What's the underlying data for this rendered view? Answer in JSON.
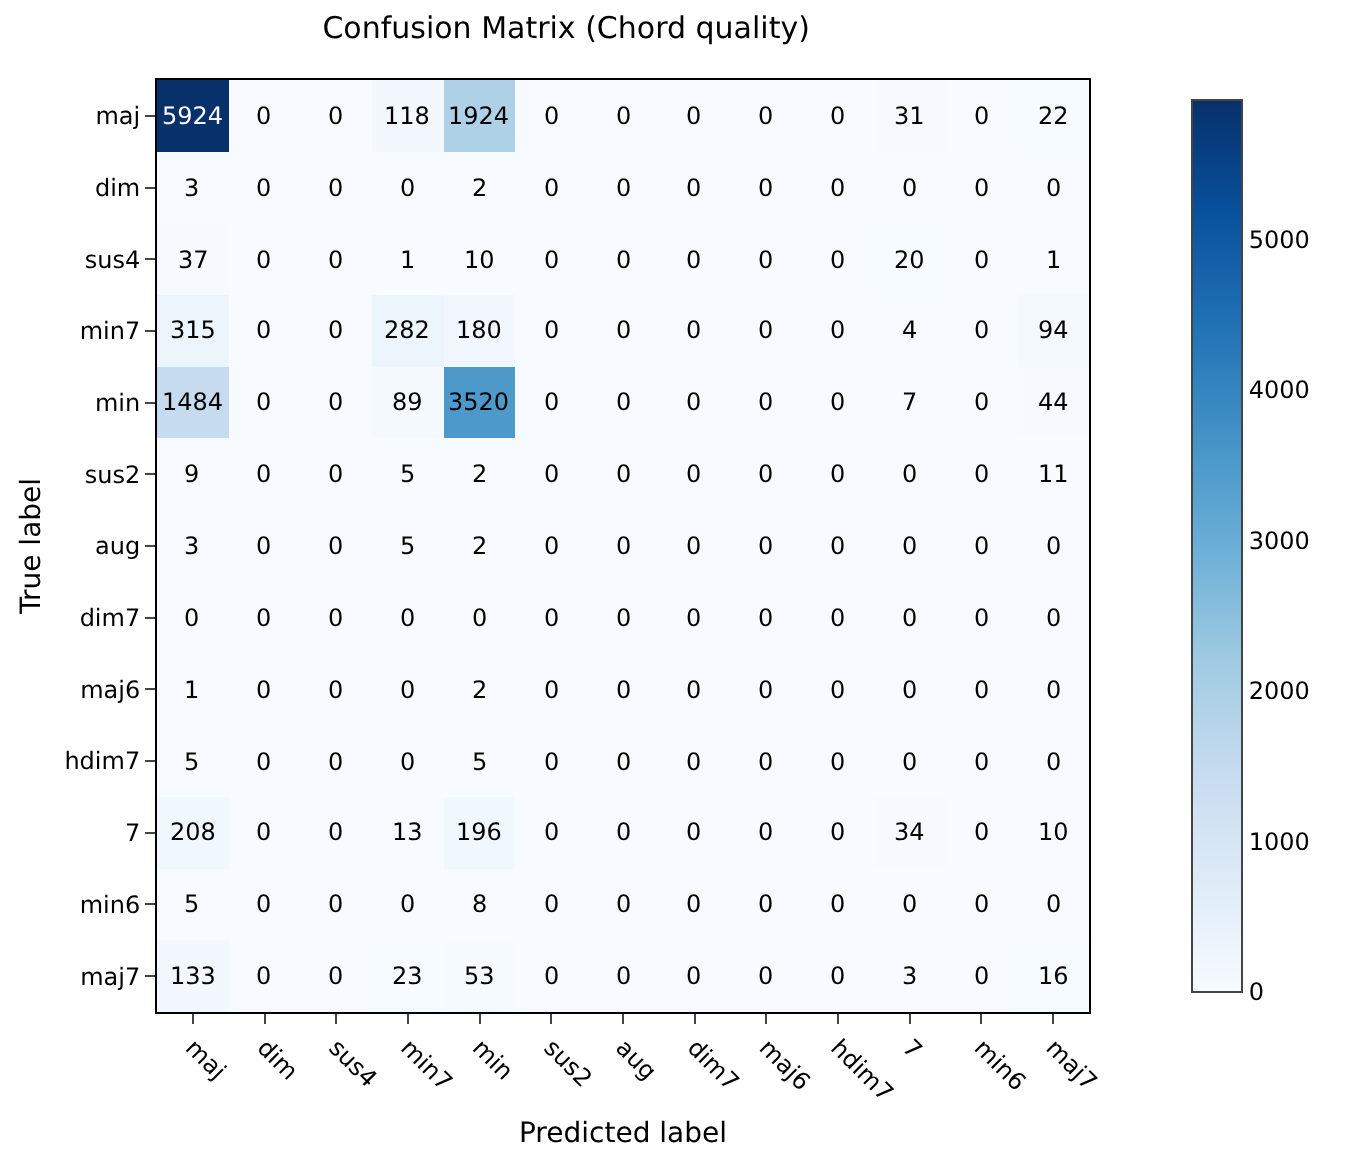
{
  "chart_data": {
    "type": "heatmap",
    "title": "Confusion Matrix (Chord quality)",
    "xlabel": "Predicted label",
    "ylabel": "True label",
    "categories": [
      "maj",
      "dim",
      "sus4",
      "min7",
      "min",
      "sus2",
      "aug",
      "dim7",
      "maj6",
      "hdim7",
      "7",
      "min6",
      "maj7"
    ],
    "y_categories": [
      "maj",
      "dim",
      "sus4",
      "min7",
      "min",
      "sus2",
      "aug",
      "dim7",
      "maj6",
      "hdim7",
      "7",
      "min6",
      "maj7"
    ],
    "cells": [
      [
        5924,
        0,
        0,
        118,
        1924,
        0,
        0,
        0,
        0,
        0,
        31,
        0,
        22
      ],
      [
        3,
        0,
        0,
        0,
        2,
        0,
        0,
        0,
        0,
        0,
        0,
        0,
        0
      ],
      [
        37,
        0,
        0,
        1,
        10,
        0,
        0,
        0,
        0,
        0,
        20,
        0,
        1
      ],
      [
        315,
        0,
        0,
        282,
        180,
        0,
        0,
        0,
        0,
        0,
        4,
        0,
        94
      ],
      [
        1484,
        0,
        0,
        89,
        3520,
        0,
        0,
        0,
        0,
        0,
        7,
        0,
        44
      ],
      [
        9,
        0,
        0,
        5,
        2,
        0,
        0,
        0,
        0,
        0,
        0,
        0,
        11
      ],
      [
        3,
        0,
        0,
        5,
        2,
        0,
        0,
        0,
        0,
        0,
        0,
        0,
        0
      ],
      [
        0,
        0,
        0,
        0,
        0,
        0,
        0,
        0,
        0,
        0,
        0,
        0,
        0
      ],
      [
        1,
        0,
        0,
        0,
        2,
        0,
        0,
        0,
        0,
        0,
        0,
        0,
        0
      ],
      [
        5,
        0,
        0,
        0,
        5,
        0,
        0,
        0,
        0,
        0,
        0,
        0,
        0
      ],
      [
        208,
        0,
        0,
        13,
        196,
        0,
        0,
        0,
        0,
        0,
        34,
        0,
        10
      ],
      [
        5,
        0,
        0,
        0,
        8,
        0,
        0,
        0,
        0,
        0,
        0,
        0,
        0
      ],
      [
        133,
        0,
        0,
        23,
        53,
        0,
        0,
        0,
        0,
        0,
        3,
        0,
        16
      ]
    ],
    "clim": [
      0,
      5924
    ],
    "cticks": [
      0,
      1000,
      2000,
      3000,
      4000,
      5000
    ],
    "data_labels": true
  }
}
